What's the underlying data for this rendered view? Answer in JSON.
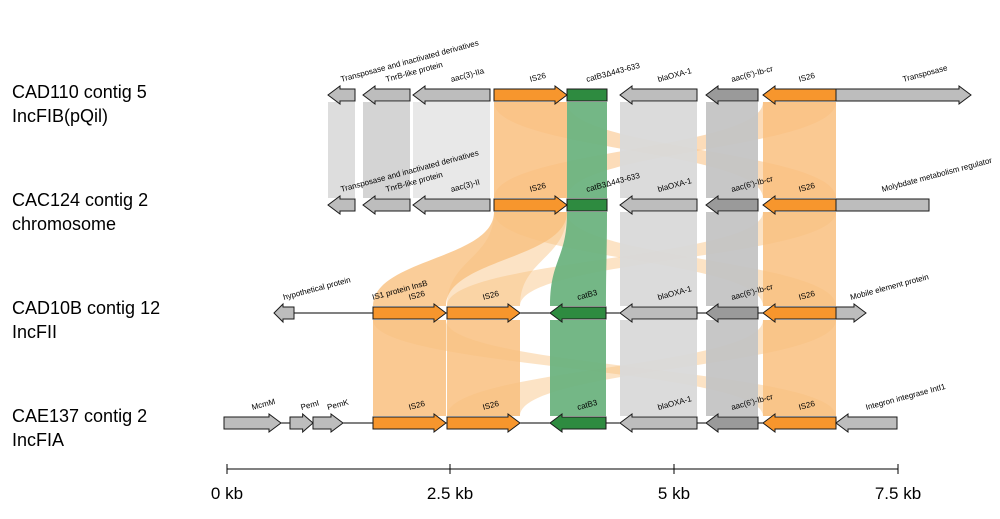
{
  "colors": {
    "is26_fill": "#F7962D",
    "is26_link": "#F9C07F",
    "cat_fill": "#2E8B40",
    "cat_link": "#6DB37F",
    "grey_fill": "#BDBDBD",
    "dark_grey_fill": "#9A9A9A",
    "light_grey_link": "#D9D9D9",
    "mid_grey_link": "#C4C4C4"
  },
  "tracks": [
    {
      "line1": "CAD110 contig 5",
      "line2": "IncFIB(pQil)"
    },
    {
      "line1": "CAC124 contig 2",
      "line2": "chromosome"
    },
    {
      "line1": "CAD10B contig 12",
      "line2": "IncFII"
    },
    {
      "line1": "CAE137 contig 2",
      "line2": "IncFIA"
    }
  ],
  "genes": {
    "t0": [
      {
        "label": "Transposase and inactivated derivatives",
        "type": "grey"
      },
      {
        "label": "TnrB-like protein",
        "type": "grey"
      },
      {
        "label": "aac(3)-IIa",
        "type": "grey"
      },
      {
        "label": "IS26",
        "type": "is26"
      },
      {
        "label": "catB3Δ443-633",
        "type": "cat"
      },
      {
        "label": "blaOXA-1",
        "type": "grey"
      },
      {
        "label": "aac(6')-Ib-cr",
        "type": "darkgrey"
      },
      {
        "label": "IS26",
        "type": "is26"
      },
      {
        "label": "Transposase",
        "type": "grey"
      }
    ],
    "t1": [
      {
        "label": "Transposase and inactivated derivatives",
        "type": "grey"
      },
      {
        "label": "TnrB-like protein",
        "type": "grey"
      },
      {
        "label": "aac(3)-II",
        "type": "grey"
      },
      {
        "label": "IS26",
        "type": "is26"
      },
      {
        "label": "catB3Δ443-633",
        "type": "cat"
      },
      {
        "label": "blaOXA-1",
        "type": "grey"
      },
      {
        "label": "aac(6')-Ib-cr",
        "type": "darkgrey"
      },
      {
        "label": "IS26",
        "type": "is26"
      },
      {
        "label": "Molybdate metabolism regulator",
        "type": "grey"
      }
    ],
    "t2": [
      {
        "label": "hypothetical protein",
        "type": "grey"
      },
      {
        "label": "IS1 protein InsB",
        "type": "grey"
      },
      {
        "label": "IS26",
        "type": "is26"
      },
      {
        "label": "IS26",
        "type": "is26"
      },
      {
        "label": "catB3",
        "type": "cat"
      },
      {
        "label": "blaOXA-1",
        "type": "grey"
      },
      {
        "label": "aac(6')-Ib-cr",
        "type": "darkgrey"
      },
      {
        "label": "IS26",
        "type": "is26"
      },
      {
        "label": "Mobile element protein",
        "type": "grey"
      }
    ],
    "t3": [
      {
        "label": "McmM",
        "type": "grey"
      },
      {
        "label": "PemI",
        "type": "grey"
      },
      {
        "label": "PemK",
        "type": "grey"
      },
      {
        "label": "IS26",
        "type": "is26"
      },
      {
        "label": "IS26",
        "type": "is26"
      },
      {
        "label": "catB3",
        "type": "cat"
      },
      {
        "label": "blaOXA-1",
        "type": "grey"
      },
      {
        "label": "aac(6')-Ib-cr",
        "type": "darkgrey"
      },
      {
        "label": "IS26",
        "type": "is26"
      },
      {
        "label": "Integron integrase IntI1",
        "type": "grey"
      }
    ]
  },
  "scale": {
    "ticks": [
      "0 kb",
      "2.5 kb",
      "5 kb",
      "7.5 kb"
    ]
  }
}
